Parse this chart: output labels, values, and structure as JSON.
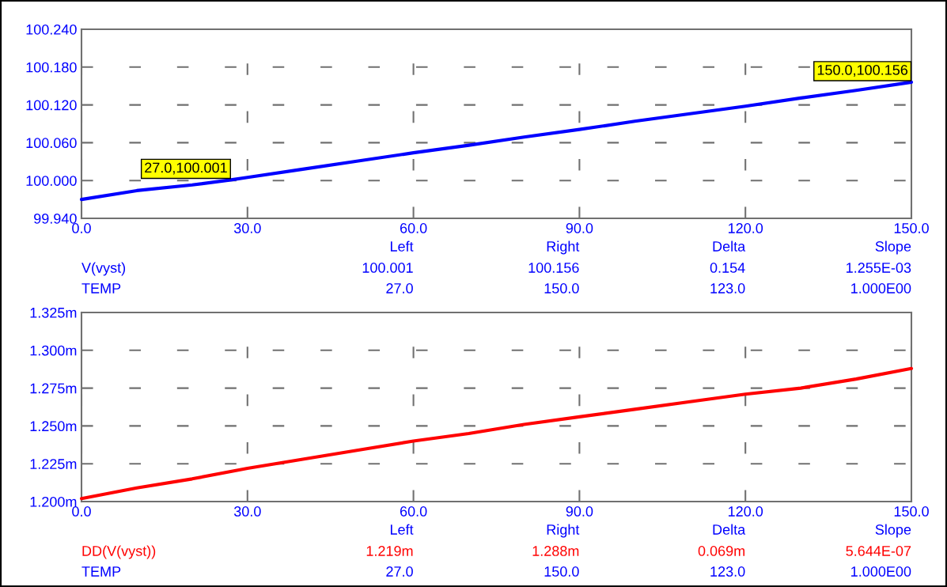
{
  "chart_data": [
    {
      "type": "line",
      "x": [
        0,
        10,
        20,
        27,
        30,
        40,
        50,
        60,
        70,
        80,
        90,
        100,
        110,
        120,
        130,
        140,
        150
      ],
      "series": [
        {
          "name": "V(vyst)",
          "color": "#0000ff",
          "values": [
            99.97,
            99.984,
            99.993,
            100.001,
            100.005,
            100.018,
            100.031,
            100.044,
            100.056,
            100.069,
            100.081,
            100.094,
            100.106,
            100.118,
            100.131,
            100.143,
            100.156
          ]
        }
      ],
      "xlim": [
        0,
        150
      ],
      "xticks": [
        {
          "value": 0,
          "label": "0.0"
        },
        {
          "value": 30,
          "label": "30.0"
        },
        {
          "value": 60,
          "label": "60.0"
        },
        {
          "value": 90,
          "label": "90.0"
        },
        {
          "value": 120,
          "label": "120.0"
        },
        {
          "value": 150,
          "label": "150.0"
        }
      ],
      "ylim": [
        99.94,
        100.24
      ],
      "yticks": [
        {
          "value": 99.94,
          "label": "99.940"
        },
        {
          "value": 100.0,
          "label": "100.000"
        },
        {
          "value": 100.06,
          "label": "100.060"
        },
        {
          "value": 100.12,
          "label": "100.120"
        },
        {
          "value": 100.18,
          "label": "100.180"
        },
        {
          "value": 100.24,
          "label": "100.240"
        }
      ],
      "grid": true,
      "line_style": "solid",
      "annotations": [
        "Left",
        "Right",
        "Delta",
        "Slope",
        "100.001",
        "100.156",
        "0.154",
        "1.255E-03",
        "TEMP",
        "27.0",
        "150.0",
        "123.0",
        "1.000E00",
        {
          "text": "27.0,100.001",
          "x": 27,
          "y": 100.001
        },
        {
          "text": "150.0,100.156",
          "x": 150,
          "y": 100.156
        }
      ]
    },
    {
      "type": "line",
      "x": [
        0,
        10,
        20,
        30,
        40,
        50,
        60,
        70,
        80,
        90,
        100,
        110,
        120,
        130,
        140,
        150
      ],
      "series": [
        {
          "name": "DD(V(vyst))",
          "color": "#ff0000",
          "values": [
            1.202,
            1.209,
            1.215,
            1.222,
            1.228,
            1.234,
            1.24,
            1.245,
            1.251,
            1.256,
            1.261,
            1.266,
            1.271,
            1.275,
            1.281,
            1.288
          ]
        }
      ],
      "xlim": [
        0,
        150
      ],
      "xticks": [
        {
          "value": 0,
          "label": "0.0"
        },
        {
          "value": 30,
          "label": "30.0"
        },
        {
          "value": 60,
          "label": "60.0"
        },
        {
          "value": 90,
          "label": "90.0"
        },
        {
          "value": 120,
          "label": "120.0"
        },
        {
          "value": 150,
          "label": "150.0"
        }
      ],
      "ylim": [
        1.2,
        1.325
      ],
      "yticks": [
        {
          "value": 1.2,
          "label": "1.200m"
        },
        {
          "value": 1.225,
          "label": "1.225m"
        },
        {
          "value": 1.25,
          "label": "1.250m"
        },
        {
          "value": 1.275,
          "label": "1.275m"
        },
        {
          "value": 1.3,
          "label": "1.300m"
        },
        {
          "value": 1.325,
          "label": "1.325m"
        }
      ],
      "grid": true,
      "line_style": "solid",
      "annotations": [
        "Left",
        "Right",
        "Delta",
        "Slope",
        "1.219m",
        "1.288m",
        "0.069m",
        "5.644E-07",
        "TEMP",
        "27.0",
        "150.0",
        "123.0",
        "1.000E00"
      ]
    }
  ]
}
